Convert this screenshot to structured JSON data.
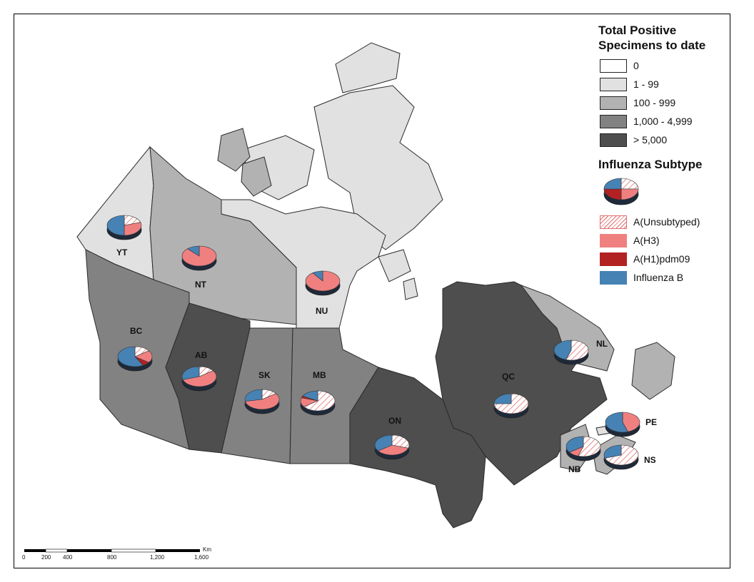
{
  "legend": {
    "positive_title": "Total Positive Specimens to date",
    "positive_title_line1": "Total Positive",
    "positive_title_line2": "Specimens to date",
    "classes": [
      {
        "label": "0",
        "color": "#ffffff"
      },
      {
        "label": "1 - 99",
        "color": "#e1e1e1"
      },
      {
        "label": "100 - 999",
        "color": "#b2b2b2"
      },
      {
        "label": "1,000 - 4,999",
        "color": "#828282"
      },
      {
        "label": "> 5,000",
        "color": "#4e4e4e"
      }
    ],
    "subtype_title": "Influenza Subtype",
    "subtypes": [
      {
        "label": "A(Unsubtyped)",
        "color": "#e26d6d",
        "pattern": "hatch"
      },
      {
        "label": "A(H3)",
        "color": "#f08080"
      },
      {
        "label": "A(H1)pdm09",
        "color": "#b22222"
      },
      {
        "label": "Influenza B",
        "color": "#4682b4"
      }
    ]
  },
  "provinces": [
    {
      "code": "YT",
      "class": "1 - 99",
      "share": {
        "A(Unsubtyped)": 0.2,
        "A(H3)": 0.3,
        "A(H1)pdm09": 0.0,
        "Influenza B": 0.5
      }
    },
    {
      "code": "NT",
      "class": "100 - 999",
      "share": {
        "A(Unsubtyped)": 0.0,
        "A(H3)": 0.88,
        "A(H1)pdm09": 0.0,
        "Influenza B": 0.12
      }
    },
    {
      "code": "NU",
      "class": "1 - 99",
      "share": {
        "A(Unsubtyped)": 0.0,
        "A(H3)": 0.9,
        "A(H1)pdm09": 0.0,
        "Influenza B": 0.1
      }
    },
    {
      "code": "BC",
      "class": "1,000 - 4,999",
      "share": {
        "A(Unsubtyped)": 0.15,
        "A(H3)": 0.2,
        "A(H1)pdm09": 0.07,
        "Influenza B": 0.58
      }
    },
    {
      "code": "AB",
      "class": "> 5,000",
      "share": {
        "A(Unsubtyped)": 0.15,
        "A(H3)": 0.55,
        "A(H1)pdm09": 0.0,
        "Influenza B": 0.3
      }
    },
    {
      "code": "SK",
      "class": "1,000 - 4,999",
      "share": {
        "A(Unsubtyped)": 0.15,
        "A(H3)": 0.57,
        "A(H1)pdm09": 0.0,
        "Influenza B": 0.28
      }
    },
    {
      "code": "MB",
      "class": "1,000 - 4,999",
      "share": {
        "A(Unsubtyped)": 0.65,
        "A(H3)": 0.15,
        "A(H1)pdm09": 0.03,
        "Influenza B": 0.17
      }
    },
    {
      "code": "ON",
      "class": "> 5,000",
      "share": {
        "A(Unsubtyped)": 0.3,
        "A(H3)": 0.35,
        "A(H1)pdm09": 0.0,
        "Influenza B": 0.35
      }
    },
    {
      "code": "QC",
      "class": "> 5,000",
      "share": {
        "A(Unsubtyped)": 0.75,
        "A(H3)": 0.0,
        "A(H1)pdm09": 0.0,
        "Influenza B": 0.25
      }
    },
    {
      "code": "NL",
      "class": "100 - 999",
      "share": {
        "A(Unsubtyped)": 0.55,
        "A(H3)": 0.0,
        "A(H1)pdm09": 0.0,
        "Influenza B": 0.45
      }
    },
    {
      "code": "NB",
      "class": "100 - 999",
      "share": {
        "A(Unsubtyped)": 0.55,
        "A(H3)": 0.1,
        "A(H1)pdm09": 0.0,
        "Influenza B": 0.35
      }
    },
    {
      "code": "NS",
      "class": "100 - 999",
      "share": {
        "A(Unsubtyped)": 0.7,
        "A(H3)": 0.0,
        "A(H1)pdm09": 0.0,
        "Influenza B": 0.3
      }
    },
    {
      "code": "PE",
      "class": "1 - 99",
      "share": {
        "A(Unsubtyped)": 0.0,
        "A(H3)": 0.45,
        "A(H1)pdm09": 0.0,
        "Influenza B": 0.55
      }
    }
  ],
  "legend_pie": {
    "share": {
      "A(Unsubtyped)": 0.25,
      "A(H3)": 0.25,
      "A(H1)pdm09": 0.25,
      "Influenza B": 0.25
    }
  },
  "scale_bar": {
    "ticks": [
      "0",
      "200",
      "400",
      "800",
      "1,200",
      "1,600"
    ],
    "unit": "Km"
  }
}
